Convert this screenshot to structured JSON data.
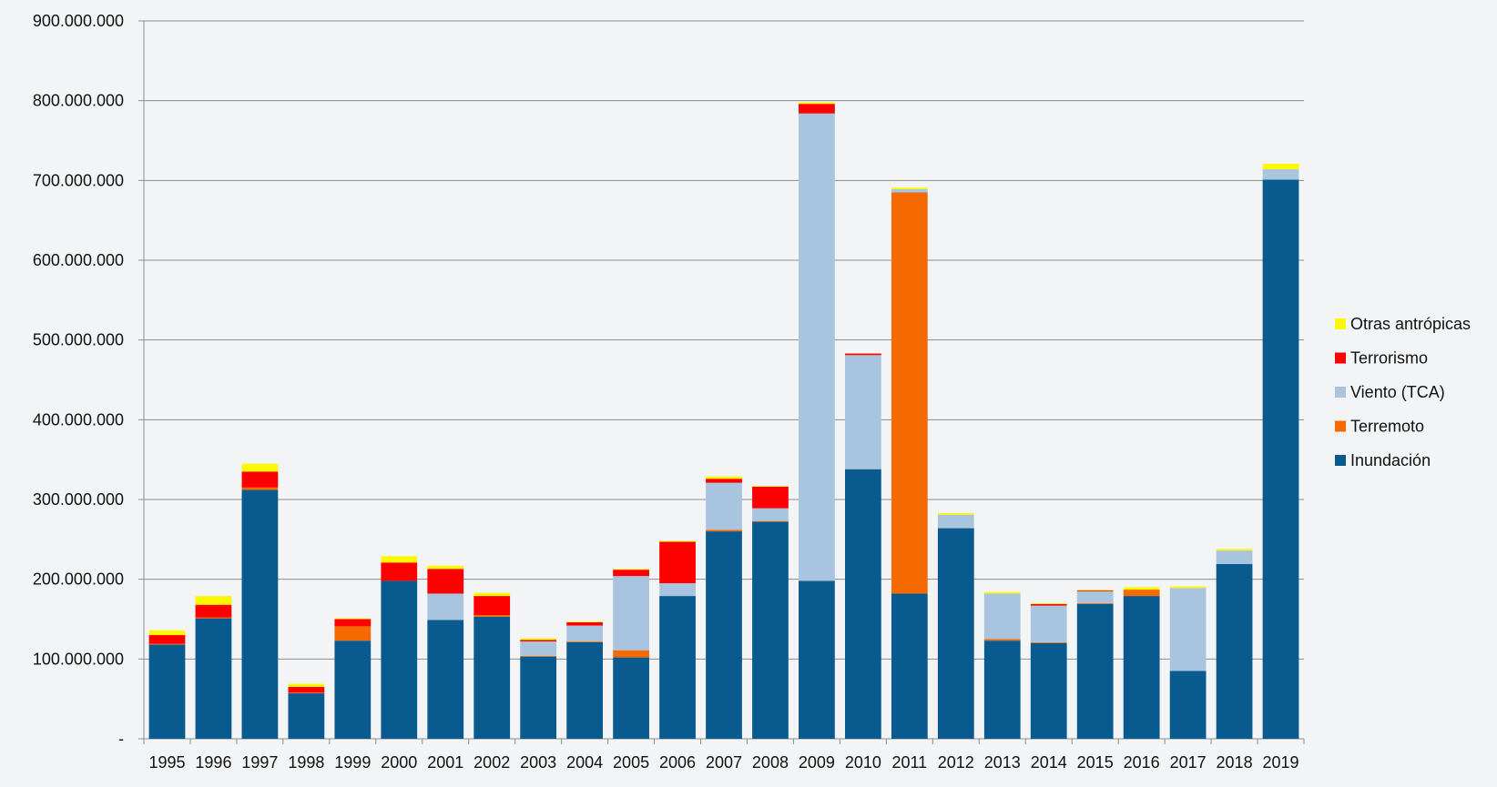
{
  "chart_data": {
    "type": "bar",
    "stacked": true,
    "title": "",
    "xlabel": "",
    "ylabel": "",
    "ylim": [
      0,
      900000000
    ],
    "y_ticks": [
      {
        "value": 0,
        "label": "-"
      },
      {
        "value": 100000000,
        "label": "100.000.000"
      },
      {
        "value": 200000000,
        "label": "200.000.000"
      },
      {
        "value": 300000000,
        "label": "300.000.000"
      },
      {
        "value": 400000000,
        "label": "400.000.000"
      },
      {
        "value": 500000000,
        "label": "500.000.000"
      },
      {
        "value": 600000000,
        "label": "600.000.000"
      },
      {
        "value": 700000000,
        "label": "700.000.000"
      },
      {
        "value": 800000000,
        "label": "800.000.000"
      },
      {
        "value": 900000000,
        "label": "900.000.000"
      }
    ],
    "grid": true,
    "legend_position": "right",
    "categories": [
      "1995",
      "1996",
      "1997",
      "1998",
      "1999",
      "2000",
      "2001",
      "2002",
      "2003",
      "2004",
      "2005",
      "2006",
      "2007",
      "2008",
      "2009",
      "2010",
      "2011",
      "2012",
      "2013",
      "2014",
      "2015",
      "2016",
      "2017",
      "2018",
      "2019"
    ],
    "series": [
      {
        "name": "Inundación",
        "color": "#085a8f",
        "values": [
          118000000,
          151000000,
          312000000,
          57000000,
          123000000,
          198000000,
          149000000,
          153000000,
          103000000,
          121000000,
          102000000,
          179000000,
          260000000,
          272000000,
          198000000,
          338000000,
          182000000,
          264000000,
          123000000,
          120000000,
          169000000,
          179000000,
          85000000,
          219000000,
          701000000
        ]
      },
      {
        "name": "Terremoto",
        "color": "#f56a00",
        "values": [
          1000000,
          1000000,
          3000000,
          1000000,
          18000000,
          0,
          0,
          2000000,
          1000000,
          1000000,
          9000000,
          0,
          2000000,
          1000000,
          0,
          0,
          503000000,
          0,
          2000000,
          1000000,
          1000000,
          8000000,
          0,
          0,
          0
        ]
      },
      {
        "name": "Viento (TCA)",
        "color": "#a9c4df",
        "values": [
          0,
          0,
          0,
          0,
          0,
          0,
          33000000,
          0,
          18000000,
          20000000,
          93000000,
          16000000,
          59000000,
          16000000,
          586000000,
          143000000,
          4000000,
          17000000,
          57000000,
          46000000,
          15000000,
          0,
          104000000,
          17000000,
          13000000
        ]
      },
      {
        "name": "Terrorismo",
        "color": "#fd0000",
        "values": [
          11000000,
          16000000,
          20000000,
          7000000,
          9000000,
          23000000,
          31000000,
          24000000,
          2000000,
          4000000,
          8000000,
          52000000,
          5000000,
          27000000,
          12000000,
          2000000,
          0,
          0,
          0,
          2000000,
          1000000,
          0,
          0,
          0,
          0
        ]
      },
      {
        "name": "Otras antrópicas",
        "color": "#fbf803",
        "values": [
          6000000,
          11000000,
          10000000,
          4000000,
          1000000,
          8000000,
          4000000,
          4000000,
          2000000,
          1000000,
          1000000,
          1000000,
          3000000,
          1000000,
          2000000,
          0,
          2000000,
          2000000,
          2000000,
          1000000,
          1000000,
          3000000,
          2000000,
          2000000,
          7000000
        ]
      }
    ],
    "legend_order": [
      "Otras antrópicas",
      "Terrorismo",
      "Viento (TCA)",
      "Terremoto",
      "Inundación"
    ]
  }
}
